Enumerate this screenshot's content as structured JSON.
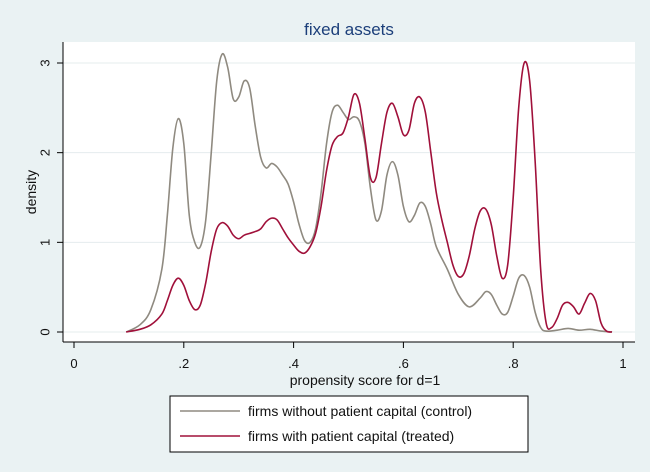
{
  "chart_data": {
    "type": "line",
    "title": "fixed assets",
    "xlabel": "propensity score for d=1",
    "ylabel": "density",
    "xlim": [
      0,
      1
    ],
    "ylim": [
      0,
      3.25
    ],
    "x_ticks": [
      0,
      0.2,
      0.4,
      0.6,
      0.8,
      1
    ],
    "x_tick_labels": [
      "0",
      ".2",
      ".4",
      ".6",
      ".8",
      "1"
    ],
    "y_ticks": [
      0,
      1,
      2,
      3
    ],
    "y_tick_labels": [
      "0",
      "1",
      "2",
      "3"
    ],
    "grid": "horizontal",
    "legend_position": "bottom",
    "colors": {
      "control": "#8f8a80",
      "treated": "#a0103a"
    },
    "series": [
      {
        "name": "firms without patient capital (control)",
        "color": "#8f8a80",
        "points": [
          [
            0.095,
            0.0
          ],
          [
            0.12,
            0.08
          ],
          [
            0.14,
            0.25
          ],
          [
            0.16,
            0.7
          ],
          [
            0.17,
            1.3
          ],
          [
            0.18,
            2.05
          ],
          [
            0.19,
            2.38
          ],
          [
            0.2,
            2.1
          ],
          [
            0.21,
            1.3
          ],
          [
            0.22,
            1.0
          ],
          [
            0.23,
            0.95
          ],
          [
            0.24,
            1.25
          ],
          [
            0.25,
            2.0
          ],
          [
            0.26,
            2.8
          ],
          [
            0.27,
            3.1
          ],
          [
            0.28,
            2.95
          ],
          [
            0.29,
            2.6
          ],
          [
            0.3,
            2.62
          ],
          [
            0.31,
            2.8
          ],
          [
            0.32,
            2.72
          ],
          [
            0.33,
            2.3
          ],
          [
            0.34,
            1.95
          ],
          [
            0.35,
            1.83
          ],
          [
            0.36,
            1.88
          ],
          [
            0.37,
            1.84
          ],
          [
            0.38,
            1.75
          ],
          [
            0.39,
            1.65
          ],
          [
            0.4,
            1.45
          ],
          [
            0.41,
            1.2
          ],
          [
            0.42,
            1.02
          ],
          [
            0.43,
            1.0
          ],
          [
            0.44,
            1.15
          ],
          [
            0.45,
            1.55
          ],
          [
            0.46,
            2.1
          ],
          [
            0.47,
            2.45
          ],
          [
            0.48,
            2.53
          ],
          [
            0.49,
            2.45
          ],
          [
            0.5,
            2.37
          ],
          [
            0.51,
            2.4
          ],
          [
            0.52,
            2.35
          ],
          [
            0.53,
            2.1
          ],
          [
            0.54,
            1.6
          ],
          [
            0.55,
            1.25
          ],
          [
            0.56,
            1.35
          ],
          [
            0.57,
            1.75
          ],
          [
            0.58,
            1.9
          ],
          [
            0.59,
            1.75
          ],
          [
            0.6,
            1.4
          ],
          [
            0.61,
            1.23
          ],
          [
            0.62,
            1.3
          ],
          [
            0.63,
            1.44
          ],
          [
            0.64,
            1.4
          ],
          [
            0.65,
            1.2
          ],
          [
            0.66,
            0.95
          ],
          [
            0.68,
            0.7
          ],
          [
            0.7,
            0.42
          ],
          [
            0.72,
            0.28
          ],
          [
            0.74,
            0.38
          ],
          [
            0.75,
            0.45
          ],
          [
            0.76,
            0.42
          ],
          [
            0.77,
            0.3
          ],
          [
            0.78,
            0.2
          ],
          [
            0.79,
            0.22
          ],
          [
            0.8,
            0.4
          ],
          [
            0.81,
            0.6
          ],
          [
            0.82,
            0.63
          ],
          [
            0.83,
            0.5
          ],
          [
            0.84,
            0.22
          ],
          [
            0.85,
            0.05
          ],
          [
            0.86,
            0.01
          ],
          [
            0.88,
            0.02
          ],
          [
            0.9,
            0.04
          ],
          [
            0.92,
            0.02
          ],
          [
            0.94,
            0.03
          ],
          [
            0.96,
            0.01
          ],
          [
            0.98,
            0.0
          ]
        ]
      },
      {
        "name": "firms with patient capital (treated)",
        "color": "#a0103a",
        "points": [
          [
            0.095,
            0.0
          ],
          [
            0.12,
            0.03
          ],
          [
            0.14,
            0.08
          ],
          [
            0.16,
            0.2
          ],
          [
            0.17,
            0.35
          ],
          [
            0.18,
            0.52
          ],
          [
            0.19,
            0.6
          ],
          [
            0.2,
            0.52
          ],
          [
            0.21,
            0.35
          ],
          [
            0.22,
            0.25
          ],
          [
            0.23,
            0.3
          ],
          [
            0.24,
            0.55
          ],
          [
            0.25,
            0.9
          ],
          [
            0.26,
            1.15
          ],
          [
            0.27,
            1.22
          ],
          [
            0.28,
            1.18
          ],
          [
            0.29,
            1.08
          ],
          [
            0.3,
            1.04
          ],
          [
            0.31,
            1.08
          ],
          [
            0.32,
            1.1
          ],
          [
            0.33,
            1.12
          ],
          [
            0.34,
            1.15
          ],
          [
            0.35,
            1.23
          ],
          [
            0.36,
            1.27
          ],
          [
            0.37,
            1.25
          ],
          [
            0.38,
            1.15
          ],
          [
            0.39,
            1.05
          ],
          [
            0.4,
            0.97
          ],
          [
            0.41,
            0.9
          ],
          [
            0.42,
            0.88
          ],
          [
            0.43,
            0.95
          ],
          [
            0.44,
            1.1
          ],
          [
            0.45,
            1.4
          ],
          [
            0.46,
            1.8
          ],
          [
            0.47,
            2.08
          ],
          [
            0.48,
            2.18
          ],
          [
            0.49,
            2.22
          ],
          [
            0.5,
            2.4
          ],
          [
            0.51,
            2.65
          ],
          [
            0.52,
            2.55
          ],
          [
            0.53,
            2.15
          ],
          [
            0.54,
            1.72
          ],
          [
            0.55,
            1.72
          ],
          [
            0.56,
            2.1
          ],
          [
            0.57,
            2.45
          ],
          [
            0.58,
            2.55
          ],
          [
            0.59,
            2.4
          ],
          [
            0.6,
            2.2
          ],
          [
            0.61,
            2.25
          ],
          [
            0.62,
            2.55
          ],
          [
            0.63,
            2.62
          ],
          [
            0.64,
            2.45
          ],
          [
            0.65,
            2.0
          ],
          [
            0.66,
            1.55
          ],
          [
            0.67,
            1.25
          ],
          [
            0.68,
            1.0
          ],
          [
            0.69,
            0.75
          ],
          [
            0.7,
            0.62
          ],
          [
            0.71,
            0.65
          ],
          [
            0.72,
            0.85
          ],
          [
            0.73,
            1.15
          ],
          [
            0.74,
            1.35
          ],
          [
            0.75,
            1.37
          ],
          [
            0.76,
            1.2
          ],
          [
            0.77,
            0.85
          ],
          [
            0.78,
            0.6
          ],
          [
            0.79,
            0.75
          ],
          [
            0.8,
            1.5
          ],
          [
            0.81,
            2.5
          ],
          [
            0.82,
            3.0
          ],
          [
            0.83,
            2.8
          ],
          [
            0.84,
            1.9
          ],
          [
            0.85,
            0.7
          ],
          [
            0.86,
            0.1
          ],
          [
            0.87,
            0.05
          ],
          [
            0.88,
            0.15
          ],
          [
            0.89,
            0.3
          ],
          [
            0.9,
            0.33
          ],
          [
            0.91,
            0.28
          ],
          [
            0.92,
            0.2
          ],
          [
            0.93,
            0.32
          ],
          [
            0.94,
            0.43
          ],
          [
            0.95,
            0.35
          ],
          [
            0.96,
            0.1
          ],
          [
            0.97,
            0.01
          ],
          [
            0.98,
            0.0
          ]
        ]
      }
    ]
  }
}
